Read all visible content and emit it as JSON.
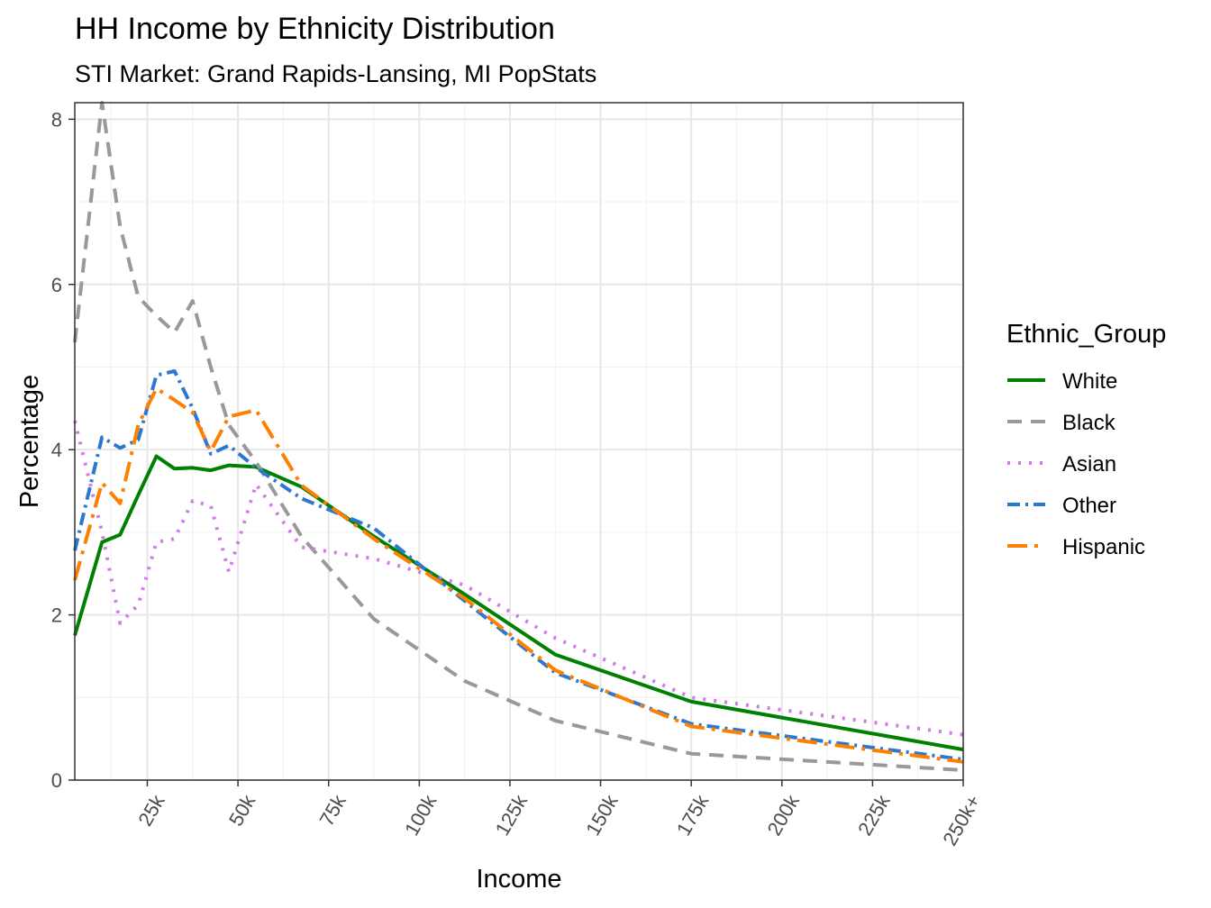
{
  "chart_data": {
    "type": "line",
    "title": "HH Income by Ethnicity Distribution",
    "subtitle": "STI Market: Grand Rapids-Lansing, MI PopStats",
    "xlabel": "Income",
    "ylabel": "Percentage",
    "x_unit": "thousands of dollars",
    "xlim": [
      5,
      250
    ],
    "ylim": [
      0,
      8.2
    ],
    "x_tick_values": [
      25,
      50,
      75,
      100,
      125,
      150,
      175,
      200,
      225,
      250
    ],
    "x_tick_labels": [
      "25k",
      "50k",
      "75k",
      "100k",
      "125k",
      "150k",
      "175k",
      "200k",
      "225k",
      "250k+"
    ],
    "y_tick_values": [
      0,
      2,
      4,
      6,
      8
    ],
    "y_tick_labels": [
      "0",
      "2",
      "4",
      "6",
      "8"
    ],
    "grid": true,
    "legend_title": "Ethnic_Group",
    "legend_position": "right",
    "x": [
      5,
      12.5,
      17.5,
      22.5,
      27.5,
      32.5,
      37.5,
      42.5,
      47.5,
      55,
      67.5,
      87.5,
      112.5,
      137.5,
      175,
      250
    ],
    "series": [
      {
        "name": "White",
        "color": "#008000",
        "dash": "solid",
        "values": [
          1.75,
          2.88,
          2.97,
          3.45,
          3.92,
          3.77,
          3.78,
          3.75,
          3.81,
          3.79,
          3.55,
          2.95,
          2.25,
          1.52,
          0.95,
          0.37
        ]
      },
      {
        "name": "Black",
        "color": "#999999",
        "dash": "dashed",
        "values": [
          5.3,
          8.2,
          6.7,
          5.85,
          5.62,
          5.42,
          5.8,
          5.0,
          4.3,
          3.85,
          2.95,
          1.95,
          1.2,
          0.72,
          0.32,
          0.12
        ]
      },
      {
        "name": "Asian",
        "color": "#D27BE8",
        "dash": "dotted",
        "values": [
          4.35,
          3.0,
          1.9,
          2.12,
          2.88,
          2.92,
          3.38,
          3.32,
          2.52,
          3.58,
          2.82,
          2.68,
          2.36,
          1.72,
          1.0,
          0.55
        ]
      },
      {
        "name": "Other",
        "color": "#2B78D0",
        "dash": "dashdot",
        "values": [
          2.78,
          4.15,
          4.02,
          4.12,
          4.9,
          4.95,
          4.5,
          3.95,
          4.05,
          3.78,
          3.41,
          3.05,
          2.17,
          1.3,
          0.68,
          0.25
        ]
      },
      {
        "name": "Hispanic",
        "color": "#FF7F00",
        "dash": "longdash",
        "values": [
          2.42,
          3.6,
          3.35,
          4.3,
          4.74,
          4.6,
          4.45,
          3.98,
          4.4,
          4.48,
          3.57,
          2.92,
          2.2,
          1.33,
          0.65,
          0.22
        ]
      }
    ]
  }
}
